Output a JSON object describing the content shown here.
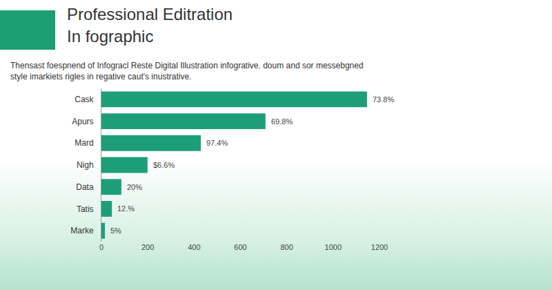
{
  "chart_data": {
    "type": "bar",
    "orientation": "horizontal",
    "title": [
      "Professional Editration",
      "In fographic"
    ],
    "subtitle": [
      "Thensast foespnend of Infogracl Reste Digital Illustration infogrative. doum and sor messebgned",
      "style imarkiets rigles in regative caut's inustrative."
    ],
    "categories": [
      "Cask",
      "Apurs",
      "Mard",
      "Nigh",
      "Data",
      "Tatis",
      "Marke"
    ],
    "values": [
      1146,
      708,
      429,
      199,
      86,
      45,
      15
    ],
    "color": "#1e9e78",
    "xlim": [
      0,
      1200
    ],
    "xticks": [
      0,
      200,
      400,
      600,
      800,
      1000,
      1200
    ],
    "grid": false,
    "annotations": [
      {
        "category": "Cask",
        "text": "73.8%"
      },
      {
        "category": "Apurs",
        "text": "69.8%"
      },
      {
        "category": "Mard",
        "text": "97.4%"
      },
      {
        "category": "Nigh",
        "text": "$6.6%"
      },
      {
        "category": "Data",
        "text": "20%"
      },
      {
        "category": "Tatis",
        "text": "12.%"
      },
      {
        "category": "Marke",
        "text": "5%"
      }
    ]
  }
}
